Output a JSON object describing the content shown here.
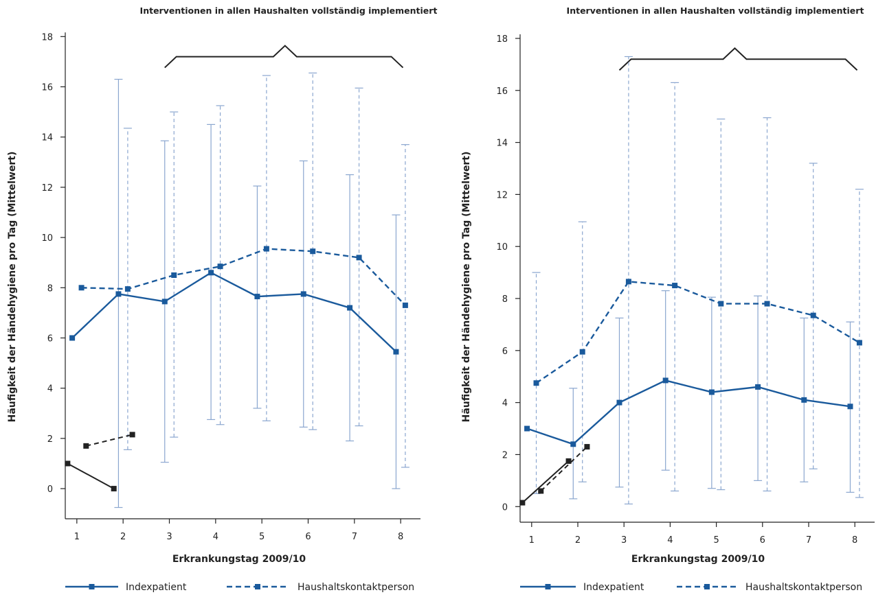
{
  "colors": {
    "series_blue": "#1a5a9c",
    "error_bar": "#8aa6cf",
    "prior_black": "#222222",
    "axis": "#222222"
  },
  "legend": {
    "index_label": "Indexpatient",
    "household_label": "Haushaltskontaktperson"
  },
  "chart_data": [
    {
      "type": "line",
      "title": "Interventionen in allen Haushalten vollständig implementiert",
      "xlabel": "Erkrankungstag 2009/10",
      "ylabel": "Häufigkeit der Händehygiene pro Tag (Mittelwert)",
      "ylim": [
        -1.2,
        18.5
      ],
      "xlim": [
        0.75,
        8.25
      ],
      "yticks": [
        0,
        2,
        4,
        6,
        8,
        10,
        12,
        14,
        16,
        18
      ],
      "xticks": [
        1,
        2,
        3,
        4,
        5,
        6,
        7,
        8
      ],
      "bracket": {
        "from": 2.9,
        "to": 8.05,
        "peak": 5.5,
        "y": 17.2
      },
      "series": [
        {
          "name": "Indexpatient",
          "style": "solid",
          "offset": -0.1,
          "x": [
            1,
            2,
            3,
            4,
            5,
            6,
            7,
            8
          ],
          "values": [
            6.0,
            7.75,
            7.45,
            8.6,
            7.65,
            7.75,
            7.2,
            5.45
          ],
          "lower": [
            null,
            -0.75,
            1.05,
            2.75,
            3.2,
            2.45,
            1.9,
            0.0
          ],
          "upper": [
            null,
            16.3,
            13.85,
            14.5,
            12.05,
            13.05,
            12.5,
            10.9
          ]
        },
        {
          "name": "Haushaltskontaktperson",
          "style": "dashed",
          "offset": 0.1,
          "x": [
            1,
            2,
            3,
            4,
            5,
            6,
            7,
            8
          ],
          "values": [
            8.0,
            7.95,
            8.5,
            8.85,
            9.55,
            9.45,
            9.2,
            7.3
          ],
          "lower": [
            null,
            1.55,
            2.05,
            2.55,
            2.7,
            2.35,
            2.5,
            0.85
          ],
          "upper": [
            null,
            14.35,
            15.0,
            15.25,
            16.45,
            16.55,
            15.95,
            13.7
          ]
        }
      ],
      "prior_series": [
        {
          "style": "solid",
          "x": [
            0.8,
            1.8
          ],
          "values": [
            1.0,
            0.0
          ]
        },
        {
          "style": "dashed",
          "x": [
            1.2,
            2.2
          ],
          "values": [
            1.7,
            2.15
          ]
        }
      ]
    },
    {
      "type": "line",
      "title": "Interventionen in allen Haushalten vollständig implementiert",
      "xlabel": "Erkrankungstag 2009/10",
      "ylabel": "Häufigkeit der Händehygiene pro Tag (Mittelwert)",
      "ylim": [
        -0.6,
        18.5
      ],
      "xlim": [
        0.75,
        8.25
      ],
      "yticks": [
        0,
        2,
        4,
        6,
        8,
        10,
        12,
        14,
        16,
        18
      ],
      "xticks": [
        1,
        2,
        3,
        4,
        5,
        6,
        7,
        8
      ],
      "bracket": {
        "from": 2.9,
        "to": 8.05,
        "peak": 5.4,
        "y": 17.2
      },
      "series": [
        {
          "name": "Indexpatient",
          "style": "solid",
          "offset": -0.1,
          "x": [
            1,
            2,
            3,
            4,
            5,
            6,
            7,
            8
          ],
          "values": [
            3.0,
            2.4,
            4.0,
            4.85,
            4.4,
            4.6,
            4.1,
            3.85
          ],
          "lower": [
            null,
            0.3,
            0.75,
            1.4,
            0.7,
            1.0,
            0.95,
            0.55
          ],
          "upper": [
            null,
            4.55,
            7.25,
            8.3,
            8.05,
            8.1,
            7.25,
            7.1
          ]
        },
        {
          "name": "Haushaltskontaktperson",
          "style": "dashed",
          "offset": 0.1,
          "x": [
            1,
            2,
            3,
            4,
            5,
            6,
            7,
            8
          ],
          "values": [
            4.75,
            5.95,
            8.65,
            8.5,
            7.8,
            7.8,
            7.35,
            6.3
          ],
          "lower": [
            0.5,
            0.95,
            0.1,
            0.6,
            0.65,
            0.6,
            1.45,
            0.35
          ],
          "upper": [
            9.0,
            10.95,
            17.3,
            16.3,
            14.9,
            14.95,
            13.2,
            12.2
          ]
        }
      ],
      "prior_series": [
        {
          "style": "solid",
          "x": [
            0.8,
            1.8
          ],
          "values": [
            0.15,
            1.75
          ]
        },
        {
          "style": "dashed",
          "x": [
            1.2,
            2.2
          ],
          "values": [
            0.6,
            2.3
          ]
        }
      ]
    }
  ]
}
